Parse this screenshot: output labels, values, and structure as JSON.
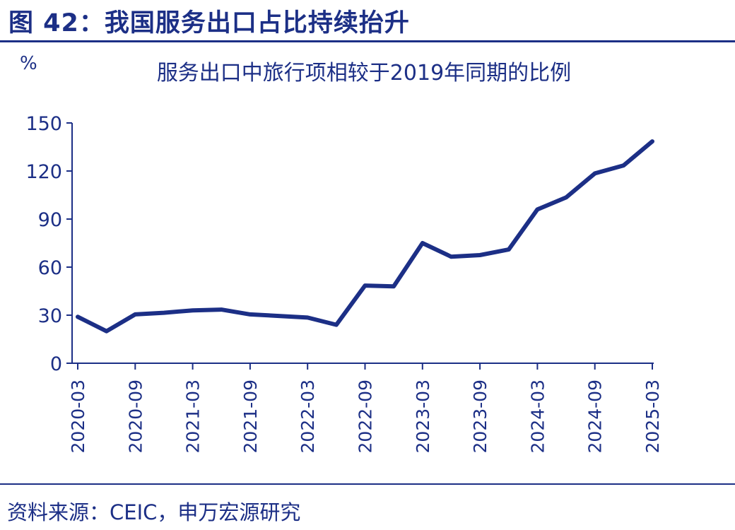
{
  "figure_title": "图 42：我国服务出口占比持续抬升",
  "source_note": "资料来源：CEIC，申万宏源研究",
  "colors": {
    "primary": "#1c2f86",
    "line": "#1c2f86",
    "background": "#ffffff"
  },
  "chart_data": {
    "type": "line",
    "title": "服务出口中旅行项相较于2019年同期的比例",
    "ylabel": "%",
    "xlabel": "",
    "ylim": [
      0,
      150
    ],
    "yticks": [
      0,
      30,
      60,
      90,
      120,
      150
    ],
    "grid": false,
    "legend": "none",
    "x": [
      "2020-03",
      "2020-06",
      "2020-09",
      "2020-12",
      "2021-03",
      "2021-06",
      "2021-09",
      "2021-12",
      "2022-03",
      "2022-06",
      "2022-09",
      "2022-12",
      "2023-03",
      "2023-06",
      "2023-09",
      "2023-12",
      "2024-03",
      "2024-06",
      "2024-09",
      "2024-12",
      "2025-03"
    ],
    "xticks": [
      "2020-03",
      "2020-09",
      "2021-03",
      "2021-09",
      "2022-03",
      "2022-09",
      "2023-03",
      "2023-09",
      "2024-03",
      "2024-09",
      "2025-03"
    ],
    "series": [
      {
        "values": [
          29,
          20,
          30.5,
          31.5,
          33,
          33.5,
          30.5,
          29.5,
          28.5,
          24,
          48.5,
          48,
          75,
          66.5,
          67.5,
          71,
          96,
          103.5,
          118.5,
          123.5,
          138.5
        ]
      }
    ]
  }
}
